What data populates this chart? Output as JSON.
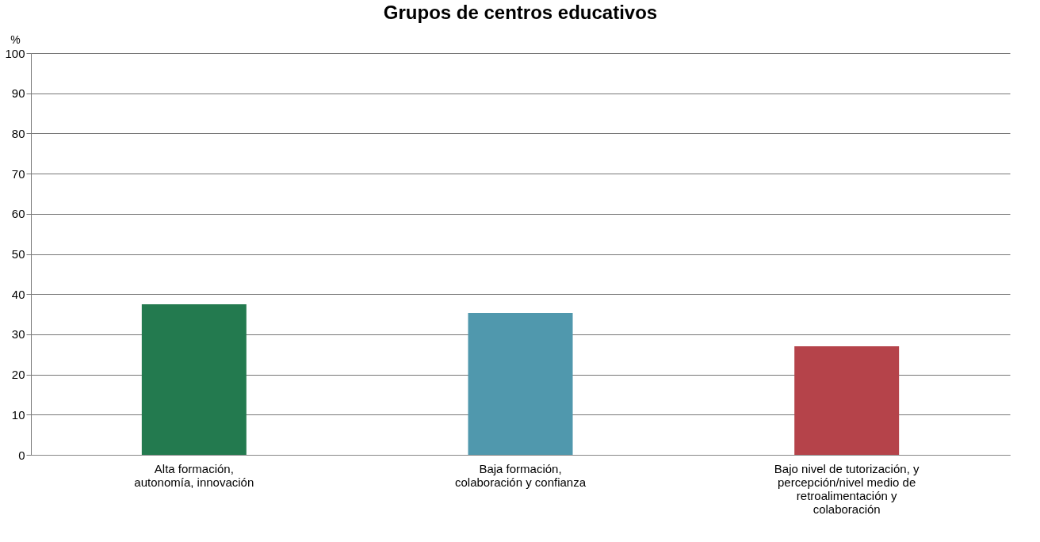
{
  "chart_data": {
    "type": "bar",
    "title": "Grupos de centros educativos",
    "ylabel": "%",
    "categories": [
      "Alta formación,\nautonomía, innovación",
      "Baja formación,\ncolaboración y confianza",
      "Bajo nivel de tutorización, y\npercepción/nivel medio de\nretroalimentación y\ncolaboración"
    ],
    "values": [
      37.5,
      35.3,
      27.0
    ],
    "colors": [
      "#237a4f",
      "#5098ad",
      "#b5434a"
    ],
    "ylim": [
      0,
      100
    ],
    "yticks": [
      0,
      10,
      20,
      30,
      40,
      50,
      60,
      70,
      80,
      90,
      100
    ],
    "grid": "y"
  }
}
